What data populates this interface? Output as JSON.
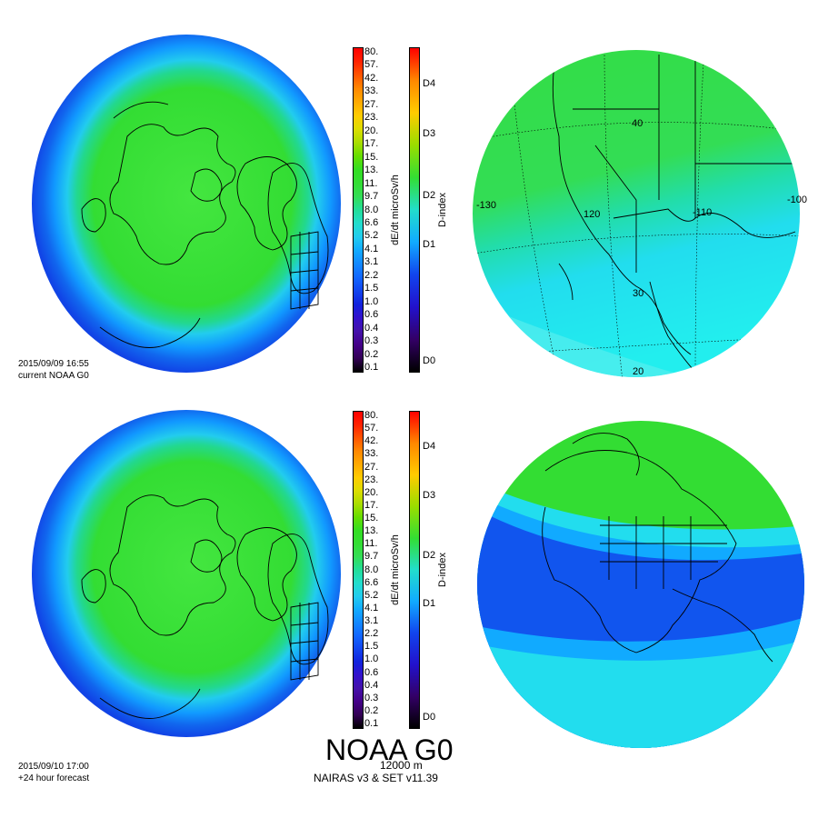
{
  "panels": {
    "current": {
      "timestamp": "2015/09/09 16:55",
      "label": "current NOAA G0"
    },
    "forecast": {
      "timestamp": "2015/09/10 17:00",
      "label": "+24 hour forecast"
    }
  },
  "dose_colorbar": {
    "title": "dE/dt microSv/h",
    "ticks": [
      "80.",
      "57.",
      "42.",
      "33.",
      "27.",
      "23.",
      "20.",
      "17.",
      "15.",
      "13.",
      "11.",
      "9.7",
      "8.0",
      "6.6",
      "5.2",
      "4.1",
      "3.1",
      "2.2",
      "1.5",
      "1.0",
      "0.6",
      "0.4",
      "0.3",
      "0.2",
      "0.1"
    ]
  },
  "dindex_colorbar": {
    "title": "D-index",
    "ticks": [
      "D4",
      "D3",
      "D2",
      "D1",
      "D0"
    ]
  },
  "regional_map": {
    "lon_labels": [
      "-130",
      "120",
      "-110",
      "-100"
    ],
    "lat_labels": [
      "40",
      "30",
      "20"
    ]
  },
  "footer": {
    "title": "NOAA G0",
    "altitude": "12000 m",
    "model": "NAIRAS v3 & SET v11.39"
  },
  "colors": {
    "green": "#33dd33",
    "cyan": "#22ddee",
    "light_blue": "#11aaff",
    "blue": "#1155ee",
    "dark_blue": "#1133dd",
    "outline": "#000000"
  }
}
